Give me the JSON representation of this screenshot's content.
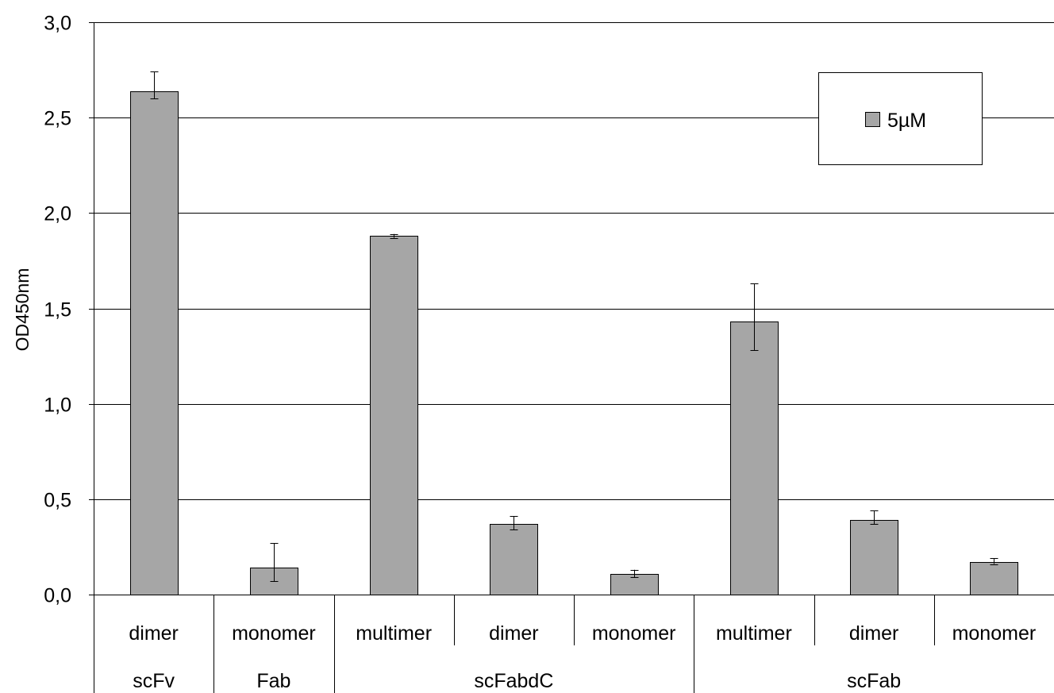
{
  "chart_data": {
    "type": "bar",
    "ylabel": "OD450nm",
    "xlabel": "",
    "ylim": [
      0,
      3
    ],
    "yticks": [
      "0,0",
      "0,5",
      "1,0",
      "1,5",
      "2,0",
      "2,5",
      "3,0"
    ],
    "grid": true,
    "legend_position": "top-right",
    "categories": [
      "dimer",
      "monomer",
      "multimer",
      "dimer",
      "monomer",
      "multimer",
      "dimer",
      "monomer"
    ],
    "groups": [
      {
        "label": "scFv",
        "span": 1
      },
      {
        "label": "Fab",
        "span": 1
      },
      {
        "label": "scFabdC",
        "span": 3
      },
      {
        "label": "scFab",
        "span": 3
      }
    ],
    "series": [
      {
        "name": "5µM",
        "color": "#a6a6a6",
        "values": [
          2.64,
          0.14,
          1.88,
          0.37,
          0.11,
          1.43,
          0.39,
          0.17
        ],
        "error_low": [
          2.6,
          0.07,
          1.87,
          0.34,
          0.09,
          1.28,
          0.37,
          0.16
        ],
        "error_high": [
          2.74,
          0.27,
          1.89,
          0.41,
          0.13,
          1.63,
          0.44,
          0.19
        ]
      }
    ]
  }
}
